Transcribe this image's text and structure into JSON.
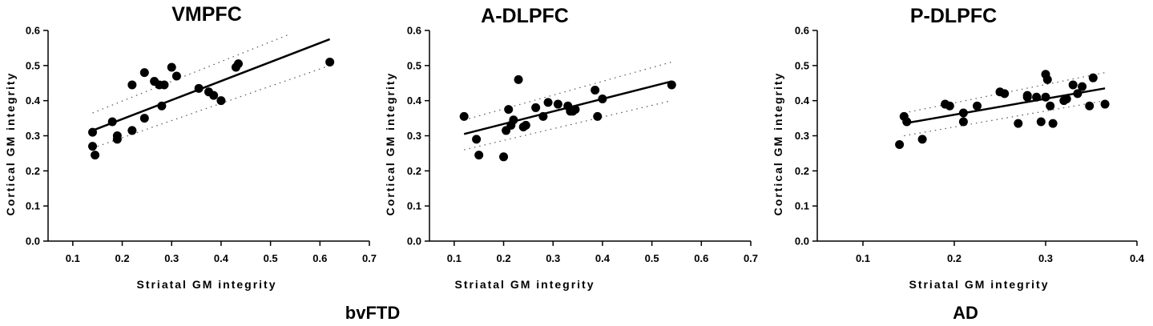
{
  "group_labels": [
    "bvFTD",
    "AD"
  ],
  "chart_data": [
    {
      "type": "scatter",
      "title": "VMPFC",
      "xlabel": "Striatal GM integrity",
      "ylabel": "Cortical GM integrity",
      "xlim": [
        0.05,
        0.7
      ],
      "ylim": [
        0.0,
        0.6
      ],
      "xticks": [
        "0.1",
        "0.2",
        "0.3",
        "0.4",
        "0.5",
        "0.6",
        "0.7"
      ],
      "yticks": [
        "0.0",
        "0.1",
        "0.2",
        "0.3",
        "0.4",
        "0.5",
        "0.6"
      ],
      "points": {
        "x": [
          0.14,
          0.14,
          0.145,
          0.18,
          0.19,
          0.19,
          0.22,
          0.22,
          0.245,
          0.245,
          0.265,
          0.275,
          0.28,
          0.285,
          0.3,
          0.31,
          0.355,
          0.375,
          0.385,
          0.4,
          0.43,
          0.435,
          0.62
        ],
        "y": [
          0.27,
          0.31,
          0.245,
          0.34,
          0.3,
          0.29,
          0.445,
          0.315,
          0.48,
          0.35,
          0.455,
          0.445,
          0.385,
          0.445,
          0.495,
          0.47,
          0.435,
          0.425,
          0.415,
          0.4,
          0.495,
          0.505,
          0.51
        ]
      },
      "fit": {
        "x": [
          0.14,
          0.62
        ],
        "y": [
          0.315,
          0.575
        ]
      },
      "ci_upper": {
        "x": [
          0.14,
          0.54
        ],
        "y": [
          0.365,
          0.59
        ]
      },
      "ci_lower": {
        "x": [
          0.14,
          0.62
        ],
        "y": [
          0.265,
          0.5
        ]
      }
    },
    {
      "type": "scatter",
      "title": "A-DLPFC",
      "xlabel": "Striatal GM integrity",
      "ylabel": "Cortical GM integrity",
      "xlim": [
        0.05,
        0.7
      ],
      "ylim": [
        0.0,
        0.6
      ],
      "xticks": [
        "0.1",
        "0.2",
        "0.3",
        "0.4",
        "0.5",
        "0.6",
        "0.7"
      ],
      "yticks": [
        "0.0",
        "0.1",
        "0.2",
        "0.3",
        "0.4",
        "0.5",
        "0.6"
      ],
      "points": {
        "x": [
          0.12,
          0.145,
          0.15,
          0.2,
          0.205,
          0.21,
          0.215,
          0.22,
          0.23,
          0.24,
          0.245,
          0.265,
          0.28,
          0.29,
          0.31,
          0.33,
          0.335,
          0.34,
          0.345,
          0.385,
          0.39,
          0.4,
          0.54
        ],
        "y": [
          0.355,
          0.29,
          0.245,
          0.24,
          0.315,
          0.375,
          0.33,
          0.345,
          0.46,
          0.325,
          0.33,
          0.38,
          0.355,
          0.395,
          0.39,
          0.385,
          0.37,
          0.37,
          0.375,
          0.43,
          0.355,
          0.405,
          0.445
        ]
      },
      "fit": {
        "x": [
          0.12,
          0.54
        ],
        "y": [
          0.305,
          0.455
        ]
      },
      "ci_upper": {
        "x": [
          0.12,
          0.54
        ],
        "y": [
          0.345,
          0.51
        ]
      },
      "ci_lower": {
        "x": [
          0.12,
          0.54
        ],
        "y": [
          0.26,
          0.4
        ]
      }
    },
    {
      "type": "scatter",
      "title": "P-DLPFC",
      "xlabel": "Striatal GM integrity",
      "ylabel": "Cortical GM integrity",
      "xlim": [
        0.05,
        0.4
      ],
      "ylim": [
        0.0,
        0.6
      ],
      "xticks": [
        "0.1",
        "0.2",
        "0.3",
        "0.4"
      ],
      "yticks": [
        "0.0",
        "0.1",
        "0.2",
        "0.3",
        "0.4",
        "0.5",
        "0.6"
      ],
      "points": {
        "x": [
          0.14,
          0.145,
          0.148,
          0.165,
          0.19,
          0.195,
          0.21,
          0.21,
          0.225,
          0.25,
          0.255,
          0.27,
          0.28,
          0.28,
          0.29,
          0.295,
          0.3,
          0.3,
          0.302,
          0.305,
          0.308,
          0.32,
          0.323,
          0.33,
          0.335,
          0.34,
          0.348,
          0.352,
          0.365
        ],
        "y": [
          0.275,
          0.355,
          0.34,
          0.29,
          0.39,
          0.385,
          0.365,
          0.34,
          0.385,
          0.425,
          0.42,
          0.335,
          0.415,
          0.41,
          0.41,
          0.34,
          0.41,
          0.475,
          0.46,
          0.385,
          0.335,
          0.4,
          0.405,
          0.445,
          0.42,
          0.44,
          0.385,
          0.465,
          0.39
        ]
      },
      "fit": {
        "x": [
          0.145,
          0.365
        ],
        "y": [
          0.335,
          0.435
        ]
      },
      "ci_upper": {
        "x": [
          0.145,
          0.365
        ],
        "y": [
          0.365,
          0.48
        ]
      },
      "ci_lower": {
        "x": [
          0.145,
          0.365
        ],
        "y": [
          0.3,
          0.4
        ]
      }
    }
  ]
}
